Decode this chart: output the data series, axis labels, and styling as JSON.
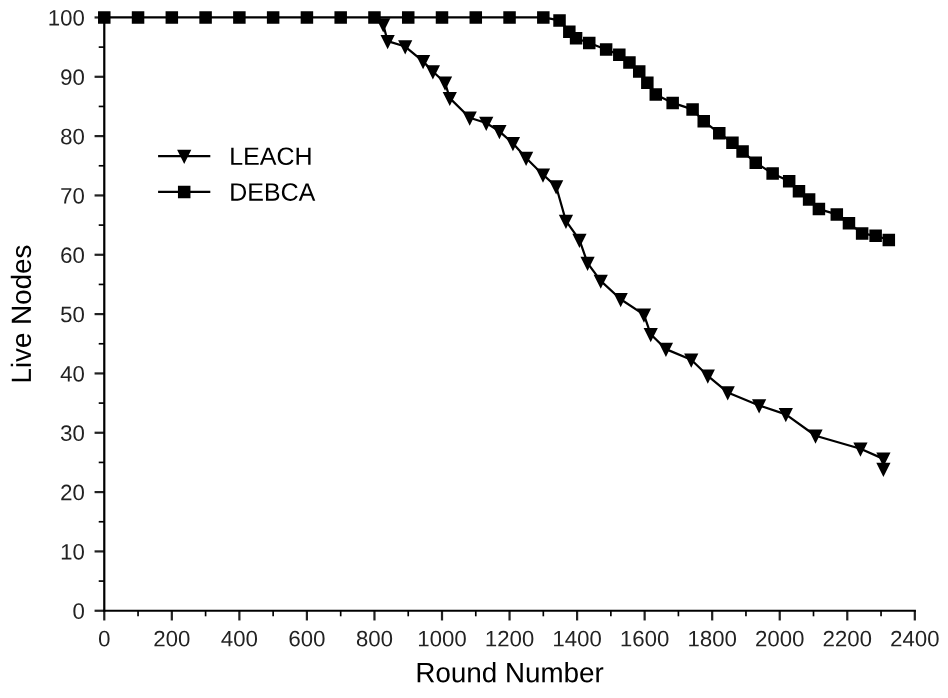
{
  "chart_data": {
    "type": "line",
    "xlabel": "Round Number",
    "ylabel": "Live Nodes",
    "xlim": [
      0,
      2400
    ],
    "ylim": [
      0,
      100
    ],
    "xticks": [
      0,
      200,
      400,
      600,
      800,
      1000,
      1200,
      1400,
      1600,
      1800,
      2000,
      2200,
      2400
    ],
    "yticks": [
      0,
      10,
      20,
      30,
      40,
      50,
      60,
      70,
      80,
      90,
      100
    ],
    "grid": false,
    "legend": "top left",
    "line_style": "solid",
    "series": [
      {
        "name": "LEACH",
        "color": "#000000",
        "marker": "triangle",
        "x": [
          826,
          839,
          891,
          944,
          973,
          1009,
          1023,
          1082,
          1131,
          1170,
          1210,
          1249,
          1299,
          1338,
          1367,
          1407,
          1431,
          1470,
          1529,
          1598,
          1618,
          1663,
          1738,
          1787,
          1846,
          1939,
          2018,
          2106,
          2239,
          2307,
          2307
        ],
        "values": [
          98.8,
          96.0,
          95.1,
          92.6,
          90.9,
          89.0,
          86.4,
          83.1,
          82.2,
          80.8,
          78.8,
          76.3,
          73.5,
          71.5,
          65.7,
          62.5,
          58.6,
          55.6,
          52.5,
          49.9,
          46.6,
          44.1,
          42.3,
          39.6,
          36.8,
          34.6,
          33.1,
          29.5,
          27.3,
          25.6,
          23.9
        ]
      },
      {
        "name": "DEBCA",
        "color": "#000000",
        "marker": "square",
        "x": [
          0,
          100,
          200,
          300,
          400,
          500,
          600,
          700,
          800,
          900,
          1000,
          1100,
          1200,
          1300,
          1348,
          1377,
          1397,
          1436,
          1486,
          1525,
          1555,
          1584,
          1608,
          1633,
          1683,
          1742,
          1775,
          1821,
          1860,
          1890,
          1929,
          1979,
          2028,
          2057,
          2087,
          2116,
          2169,
          2205,
          2244,
          2284,
          2323
        ],
        "values": [
          100,
          100,
          100,
          100,
          100,
          100,
          100,
          100,
          100,
          100,
          100,
          100,
          100,
          100,
          99.5,
          97.6,
          96.5,
          95.7,
          94.6,
          93.7,
          92.4,
          90.9,
          89.0,
          87.0,
          85.6,
          84.5,
          82.5,
          80.5,
          78.9,
          77.4,
          75.5,
          73.7,
          72.4,
          70.7,
          69.3,
          67.7,
          66.8,
          65.3,
          63.6,
          63.2,
          62.5
        ]
      }
    ]
  }
}
